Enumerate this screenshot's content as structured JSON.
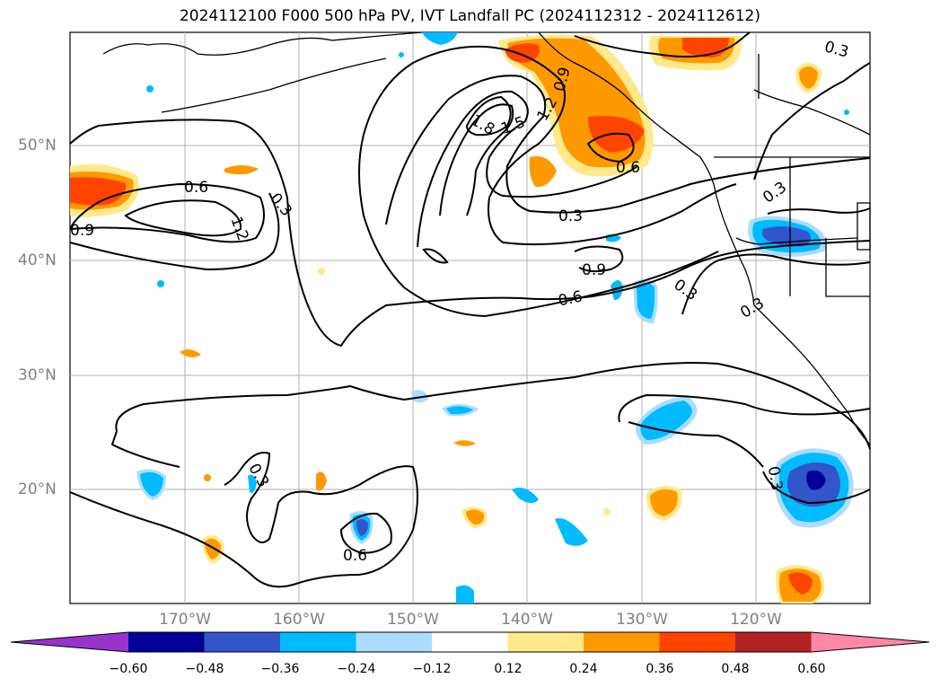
{
  "title": "2024112100 F000 500 hPa PV, IVT Landfall PC (2024112312 - 2024112612)",
  "map": {
    "region": "North-East Pacific",
    "gridlines": true,
    "lat_labels": [
      "50°N",
      "40°N",
      "30°N",
      "20°N"
    ],
    "lon_labels": [
      "170°W",
      "160°W",
      "150°W",
      "140°W",
      "130°W",
      "120°W"
    ],
    "contour_labels": [
      "0.9",
      "0.6",
      "1.2",
      "0.3",
      "1.8",
      "1.5",
      "1.2",
      "0.9",
      "0.6",
      "0.3",
      "0.9",
      "0.6",
      "0.3",
      "0.3",
      "0.3",
      "0.3",
      "0.6",
      "0.3",
      "0.3"
    ]
  },
  "colorbar": {
    "ticks": [
      "−0.60",
      "−0.48",
      "−0.36",
      "−0.24",
      "−0.12",
      "0.12",
      "0.24",
      "0.36",
      "0.48",
      "0.60"
    ],
    "colors": [
      "#9933cc",
      "#000099",
      "#3355cc",
      "#00bbff",
      "#aaddff",
      "#ffffff",
      "#ffe98a",
      "#ff9900",
      "#ff4400",
      "#b22222",
      "#ff88aa"
    ]
  }
}
